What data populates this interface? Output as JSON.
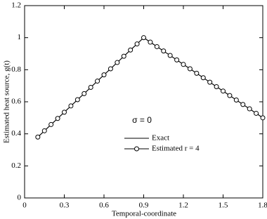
{
  "chart_data": {
    "type": "line",
    "xlabel": "Temporal-coordinate",
    "ylabel": "Estimated heat source, g(t)",
    "annotation": "σ = 0",
    "xlim": [
      0,
      1.8
    ],
    "xticks": [
      0,
      0.3,
      0.6,
      0.9,
      1.2,
      1.5,
      1.8
    ],
    "ylim": [
      0,
      1.2
    ],
    "yticks": [
      0,
      0.2,
      0.4,
      0.6,
      0.8,
      1,
      1.2
    ],
    "series": [
      {
        "name": "Exact",
        "color": "#000000",
        "marker": "none",
        "x": [
          0.1,
          0.9,
          1.8
        ],
        "values": [
          0.38,
          1,
          0.5
        ]
      },
      {
        "name": "Estimated r = 4",
        "color": "#000000",
        "marker": "circle",
        "x": [
          0.1,
          0.15,
          0.2,
          0.25,
          0.3,
          0.35,
          0.4,
          0.45,
          0.5,
          0.55,
          0.6,
          0.65,
          0.7,
          0.75,
          0.8,
          0.85,
          0.9,
          0.95,
          1.0,
          1.05,
          1.1,
          1.15,
          1.2,
          1.25,
          1.3,
          1.35,
          1.4,
          1.45,
          1.5,
          1.55,
          1.6,
          1.65,
          1.7,
          1.75,
          1.8
        ],
        "values": [
          0.38,
          0.419,
          0.458,
          0.496,
          0.535,
          0.574,
          0.613,
          0.651,
          0.69,
          0.729,
          0.768,
          0.806,
          0.845,
          0.884,
          0.923,
          0.961,
          1.0,
          0.972,
          0.944,
          0.917,
          0.889,
          0.861,
          0.833,
          0.806,
          0.778,
          0.75,
          0.722,
          0.694,
          0.667,
          0.639,
          0.611,
          0.583,
          0.556,
          0.528,
          0.5
        ]
      }
    ]
  }
}
